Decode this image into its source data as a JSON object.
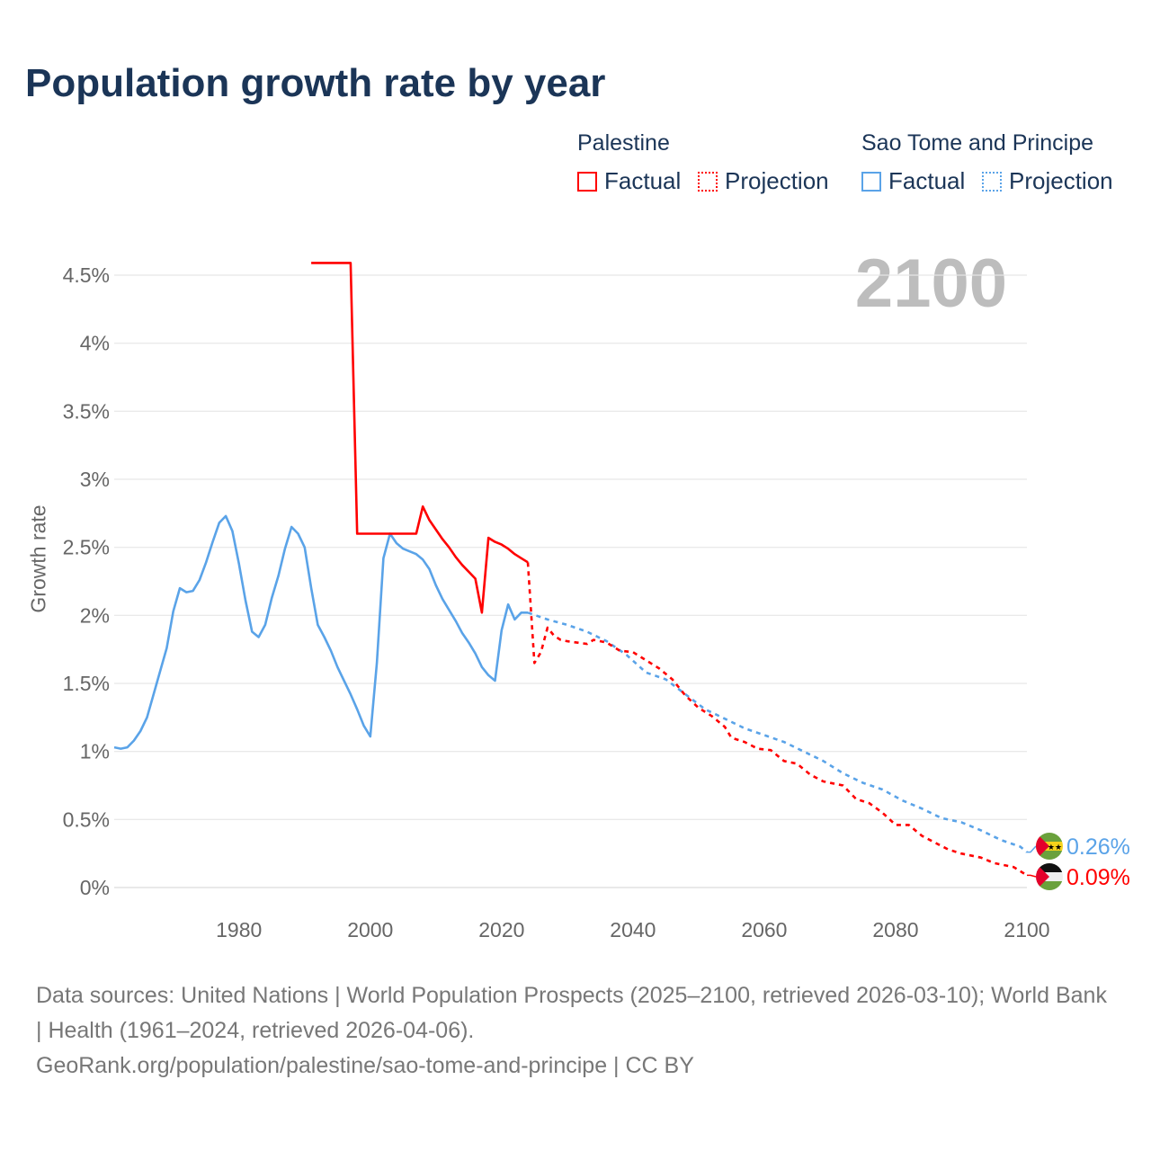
{
  "title": "Population growth rate by year",
  "current_year": "2100",
  "legend": {
    "groups": [
      {
        "name": "Palestine",
        "factual": "Factual",
        "projection": "Projection",
        "color": "#ff0000"
      },
      {
        "name": "Sao Tome and Principe",
        "factual": "Factual",
        "projection": "Projection",
        "color": "#5aa3e8"
      }
    ]
  },
  "footer": {
    "line1": "Data sources: United Nations | World Population Prospects (2025–2100, retrieved 2026-03-10); World Bank | Health (1961–2024, retrieved 2026-04-06).",
    "line2": "GeoRank.org/population/palestine/sao-tome-and-principe | CC BY"
  },
  "chart_data": {
    "type": "line",
    "title": "Population growth rate by year",
    "xlabel": "",
    "ylabel": "Growth rate",
    "xlim": [
      1961,
      2100
    ],
    "ylim": [
      0,
      4.5
    ],
    "grid": true,
    "legend_position": "top-right",
    "x_ticks": [
      {
        "v": 1980,
        "label": "1980"
      },
      {
        "v": 2000,
        "label": "2000"
      },
      {
        "v": 2020,
        "label": "2020"
      },
      {
        "v": 2040,
        "label": "2040"
      },
      {
        "v": 2060,
        "label": "2060"
      },
      {
        "v": 2080,
        "label": "2080"
      },
      {
        "v": 2100,
        "label": "2100"
      }
    ],
    "y_ticks": [
      {
        "v": 0,
        "label": "0%"
      },
      {
        "v": 0.5,
        "label": "0.5%"
      },
      {
        "v": 1,
        "label": "1%"
      },
      {
        "v": 1.5,
        "label": "1.5%"
      },
      {
        "v": 2,
        "label": "2%"
      },
      {
        "v": 2.5,
        "label": "2.5%"
      },
      {
        "v": 3,
        "label": "3%"
      },
      {
        "v": 3.5,
        "label": "3.5%"
      },
      {
        "v": 4,
        "label": "4%"
      },
      {
        "v": 4.5,
        "label": "4.5%"
      }
    ],
    "series": [
      {
        "name": "Sao Tome and Principe",
        "kind": "factual",
        "color": "#5aa3e8",
        "x": [
          1961,
          1962,
          1963,
          1964,
          1965,
          1966,
          1967,
          1968,
          1969,
          1970,
          1971,
          1972,
          1973,
          1974,
          1975,
          1976,
          1977,
          1978,
          1979,
          1980,
          1981,
          1982,
          1983,
          1984,
          1985,
          1986,
          1987,
          1988,
          1989,
          1990,
          1991,
          1992,
          1993,
          1994,
          1995,
          1996,
          1997,
          1998,
          1999,
          2000,
          2001,
          2002,
          2003,
          2004,
          2005,
          2006,
          2007,
          2008,
          2009,
          2010,
          2011,
          2012,
          2013,
          2014,
          2015,
          2016,
          2017,
          2018,
          2019,
          2020,
          2021,
          2022,
          2023,
          2024
        ],
        "y": [
          1.03,
          1.02,
          1.03,
          1.08,
          1.15,
          1.25,
          1.42,
          1.59,
          1.76,
          2.03,
          2.2,
          2.17,
          2.18,
          2.26,
          2.39,
          2.54,
          2.68,
          2.73,
          2.62,
          2.38,
          2.11,
          1.88,
          1.84,
          1.93,
          2.13,
          2.29,
          2.49,
          2.65,
          2.6,
          2.5,
          2.2,
          1.93,
          1.84,
          1.74,
          1.62,
          1.52,
          1.42,
          1.31,
          1.19,
          1.11,
          1.65,
          2.42,
          2.6,
          2.53,
          2.49,
          2.47,
          2.45,
          2.41,
          2.34,
          2.22,
          2.12,
          2.04,
          1.96,
          1.87,
          1.8,
          1.72,
          1.62,
          1.56,
          1.52,
          1.89,
          2.08,
          1.97,
          2.02,
          2.02
        ]
      },
      {
        "name": "Sao Tome and Principe",
        "kind": "projection",
        "color": "#5aa3e8",
        "x": [
          2024,
          2027,
          2030,
          2033,
          2036,
          2039,
          2042,
          2045,
          2048,
          2051,
          2054,
          2057,
          2060,
          2063,
          2066,
          2069,
          2072,
          2075,
          2078,
          2081,
          2084,
          2087,
          2090,
          2093,
          2096,
          2099,
          2100
        ],
        "y": [
          2.02,
          1.97,
          1.93,
          1.88,
          1.81,
          1.71,
          1.58,
          1.53,
          1.42,
          1.31,
          1.24,
          1.17,
          1.12,
          1.07,
          1.0,
          0.93,
          0.84,
          0.77,
          0.72,
          0.64,
          0.58,
          0.51,
          0.48,
          0.42,
          0.35,
          0.3,
          0.26
        ]
      },
      {
        "name": "Palestine",
        "kind": "factual",
        "color": "#ff0000",
        "x": [
          1991,
          1997,
          1998,
          2007,
          2008,
          2009,
          2010,
          2011,
          2012,
          2013,
          2014,
          2015,
          2016,
          2017,
          2018,
          2019,
          2020,
          2021,
          2022,
          2023,
          2024
        ],
        "y": [
          4.59,
          4.59,
          2.6,
          2.6,
          2.8,
          2.7,
          2.63,
          2.56,
          2.5,
          2.43,
          2.37,
          2.32,
          2.27,
          2.02,
          2.57,
          2.54,
          2.52,
          2.49,
          2.45,
          2.42,
          2.39
        ]
      },
      {
        "name": "Palestine",
        "kind": "projection",
        "color": "#ff0000",
        "x": [
          2024,
          2025,
          2026,
          2027,
          2028,
          2029,
          2030,
          2033,
          2034,
          2036,
          2038,
          2040,
          2042,
          2044,
          2046,
          2048,
          2050,
          2052,
          2054,
          2055,
          2057,
          2059,
          2061,
          2063,
          2065,
          2067,
          2069,
          2072,
          2074,
          2076,
          2078,
          2080,
          2082,
          2084,
          2086,
          2088,
          2090,
          2093,
          2095,
          2098,
          2100
        ],
        "y": [
          2.39,
          1.65,
          1.73,
          1.91,
          1.85,
          1.82,
          1.81,
          1.79,
          1.82,
          1.8,
          1.74,
          1.73,
          1.67,
          1.61,
          1.53,
          1.41,
          1.32,
          1.26,
          1.18,
          1.1,
          1.07,
          1.02,
          1.01,
          0.93,
          0.91,
          0.83,
          0.78,
          0.75,
          0.65,
          0.62,
          0.55,
          0.46,
          0.46,
          0.38,
          0.33,
          0.28,
          0.25,
          0.22,
          0.18,
          0.15,
          0.09
        ]
      }
    ],
    "end_labels": [
      {
        "series": "Sao Tome and Principe",
        "value": 0.26,
        "label": "0.26%",
        "color": "#5aa3e8"
      },
      {
        "series": "Palestine",
        "value": 0.09,
        "label": "0.09%",
        "color": "#ff0000"
      }
    ]
  }
}
